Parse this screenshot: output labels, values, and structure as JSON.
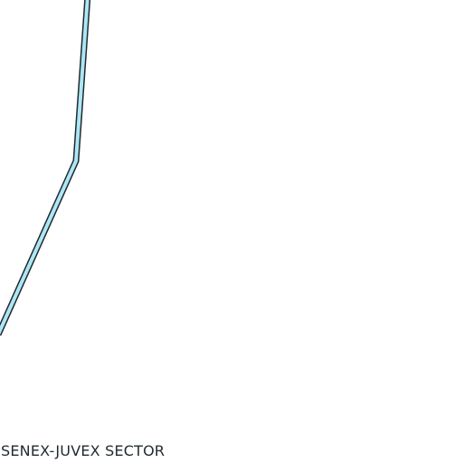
{
  "map": {
    "sector_label": "SENEX-JUVEX SECTOR",
    "colors": {
      "background": "#ffffff",
      "route_fill": "#aee6f5",
      "route_casing": "#1f2a2e",
      "label_text": "#1f2a2e"
    }
  }
}
